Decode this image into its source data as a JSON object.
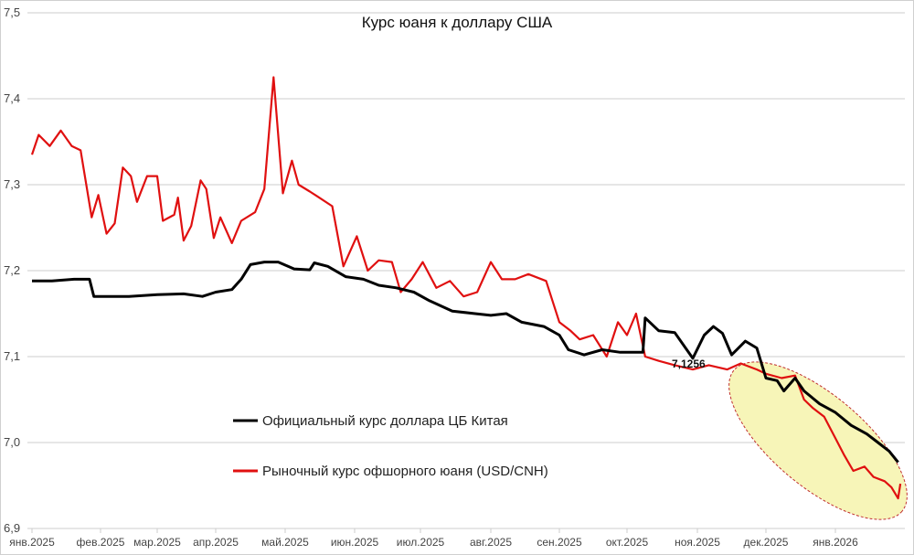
{
  "chart_data": {
    "type": "line",
    "title": "Курс юаня к доллару США",
    "ylim": [
      6.9,
      7.5
    ],
    "yticks": [
      "6,9",
      "7,0",
      "7,1",
      "7,2",
      "7,3",
      "7,4",
      "7,5"
    ],
    "ytick_values": [
      6.9,
      7.0,
      7.1,
      7.2,
      7.3,
      7.4,
      7.5
    ],
    "xticks": [
      "янв.2025",
      "фев.2025",
      "мар.2025",
      "апр.2025",
      "май.2025",
      "июн.2025",
      "июл.2025",
      "авг.2025",
      "сен.2025",
      "окт.2025",
      "ноя.2025",
      "дек.2025",
      "янв.2026"
    ],
    "xtick_dates": [
      "2025-01-01",
      "2025-02-01",
      "2025-03-01",
      "2025-04-01",
      "2025-05-01",
      "2025-06-01",
      "2025-07-01",
      "2025-08-01",
      "2025-09-01",
      "2025-10-01",
      "2025-11-01",
      "2025-12-01",
      "2026-01-01"
    ],
    "grid": true,
    "legend_placement": "center-left",
    "annotation": "7,1256",
    "highlight": "ellipse around Dec 2025 – Jan 2026 decline",
    "colors": {
      "official": "#000000",
      "offshore": "#e01010",
      "highlight_fill": "#f7f5b8",
      "highlight_stroke": "#c03030"
    },
    "series": [
      {
        "name": "Официальный курс доллара ЦБ Китая",
        "color": "#000000",
        "points": [
          [
            "2025-01-01",
            7.188
          ],
          [
            "2025-01-10",
            7.188
          ],
          [
            "2025-01-20",
            7.19
          ],
          [
            "2025-01-27",
            7.19
          ],
          [
            "2025-01-29",
            7.17
          ],
          [
            "2025-02-15",
            7.17
          ],
          [
            "2025-03-01",
            7.172
          ],
          [
            "2025-03-15",
            7.173
          ],
          [
            "2025-03-25",
            7.17
          ],
          [
            "2025-04-01",
            7.175
          ],
          [
            "2025-04-08",
            7.178
          ],
          [
            "2025-04-12",
            7.19
          ],
          [
            "2025-04-16",
            7.207
          ],
          [
            "2025-04-22",
            7.21
          ],
          [
            "2025-04-28",
            7.21
          ],
          [
            "2025-05-05",
            7.202
          ],
          [
            "2025-05-12",
            7.201
          ],
          [
            "2025-05-14",
            7.209
          ],
          [
            "2025-05-20",
            7.205
          ],
          [
            "2025-05-28",
            7.193
          ],
          [
            "2025-06-05",
            7.19
          ],
          [
            "2025-06-12",
            7.183
          ],
          [
            "2025-06-20",
            7.18
          ],
          [
            "2025-06-28",
            7.175
          ],
          [
            "2025-07-05",
            7.165
          ],
          [
            "2025-07-15",
            7.153
          ],
          [
            "2025-07-25",
            7.15
          ],
          [
            "2025-08-01",
            7.148
          ],
          [
            "2025-08-08",
            7.15
          ],
          [
            "2025-08-15",
            7.14
          ],
          [
            "2025-08-25",
            7.135
          ],
          [
            "2025-09-01",
            7.125
          ],
          [
            "2025-09-05",
            7.108
          ],
          [
            "2025-09-12",
            7.102
          ],
          [
            "2025-09-20",
            7.108
          ],
          [
            "2025-09-28",
            7.105
          ],
          [
            "2025-10-08",
            7.105
          ],
          [
            "2025-10-09",
            7.145
          ],
          [
            "2025-10-15",
            7.13
          ],
          [
            "2025-10-22",
            7.128
          ],
          [
            "2025-10-30",
            7.098
          ],
          [
            "2025-11-04",
            7.125
          ],
          [
            "2025-11-08",
            7.135
          ],
          [
            "2025-11-12",
            7.127
          ],
          [
            "2025-11-16",
            7.102
          ],
          [
            "2025-11-22",
            7.118
          ],
          [
            "2025-11-27",
            7.11
          ],
          [
            "2025-12-01",
            7.075
          ],
          [
            "2025-12-06",
            7.072
          ],
          [
            "2025-12-09",
            7.06
          ],
          [
            "2025-12-14",
            7.075
          ],
          [
            "2025-12-18",
            7.06
          ],
          [
            "2025-12-25",
            7.045
          ],
          [
            "2026-01-01",
            7.035
          ],
          [
            "2026-01-08",
            7.02
          ],
          [
            "2026-01-15",
            7.01
          ],
          [
            "2026-01-20",
            7.0
          ],
          [
            "2026-01-25",
            6.99
          ],
          [
            "2026-01-29",
            6.977
          ]
        ]
      },
      {
        "name": "Рыночный курс офшорного юаня (USD/CNH)",
        "color": "#e01010",
        "points": [
          [
            "2025-01-01",
            7.335
          ],
          [
            "2025-01-04",
            7.358
          ],
          [
            "2025-01-09",
            7.345
          ],
          [
            "2025-01-14",
            7.363
          ],
          [
            "2025-01-19",
            7.345
          ],
          [
            "2025-01-23",
            7.34
          ],
          [
            "2025-01-28",
            7.262
          ],
          [
            "2025-01-31",
            7.288
          ],
          [
            "2025-02-04",
            7.243
          ],
          [
            "2025-02-08",
            7.255
          ],
          [
            "2025-02-12",
            7.32
          ],
          [
            "2025-02-16",
            7.31
          ],
          [
            "2025-02-19",
            7.28
          ],
          [
            "2025-02-24",
            7.31
          ],
          [
            "2025-03-01",
            7.31
          ],
          [
            "2025-03-04",
            7.258
          ],
          [
            "2025-03-10",
            7.265
          ],
          [
            "2025-03-12",
            7.285
          ],
          [
            "2025-03-15",
            7.235
          ],
          [
            "2025-03-19",
            7.252
          ],
          [
            "2025-03-24",
            7.305
          ],
          [
            "2025-03-27",
            7.295
          ],
          [
            "2025-03-31",
            7.238
          ],
          [
            "2025-04-03",
            7.262
          ],
          [
            "2025-04-08",
            7.232
          ],
          [
            "2025-04-12",
            7.258
          ],
          [
            "2025-04-18",
            7.268
          ],
          [
            "2025-04-22",
            7.295
          ],
          [
            "2025-04-26",
            7.425
          ],
          [
            "2025-04-30",
            7.29
          ],
          [
            "2025-05-04",
            7.328
          ],
          [
            "2025-05-07",
            7.3
          ],
          [
            "2025-05-12",
            7.292
          ],
          [
            "2025-05-15",
            7.287
          ],
          [
            "2025-05-22",
            7.275
          ],
          [
            "2025-05-27",
            7.205
          ],
          [
            "2025-06-02",
            7.24
          ],
          [
            "2025-06-07",
            7.2
          ],
          [
            "2025-06-12",
            7.212
          ],
          [
            "2025-06-18",
            7.21
          ],
          [
            "2025-06-22",
            7.175
          ],
          [
            "2025-06-27",
            7.19
          ],
          [
            "2025-07-02",
            7.21
          ],
          [
            "2025-07-08",
            7.18
          ],
          [
            "2025-07-14",
            7.188
          ],
          [
            "2025-07-20",
            7.17
          ],
          [
            "2025-07-26",
            7.175
          ],
          [
            "2025-08-01",
            7.21
          ],
          [
            "2025-08-06",
            7.19
          ],
          [
            "2025-08-12",
            7.19
          ],
          [
            "2025-08-18",
            7.196
          ],
          [
            "2025-08-26",
            7.188
          ],
          [
            "2025-09-01",
            7.14
          ],
          [
            "2025-09-06",
            7.13
          ],
          [
            "2025-09-10",
            7.12
          ],
          [
            "2025-09-16",
            7.125
          ],
          [
            "2025-09-22",
            7.1
          ],
          [
            "2025-09-27",
            7.14
          ],
          [
            "2025-10-01",
            7.125
          ],
          [
            "2025-10-05",
            7.15
          ],
          [
            "2025-10-09",
            7.1
          ],
          [
            "2025-10-15",
            7.095
          ],
          [
            "2025-10-22",
            7.09
          ],
          [
            "2025-10-30",
            7.085
          ],
          [
            "2025-11-06",
            7.09
          ],
          [
            "2025-11-14",
            7.085
          ],
          [
            "2025-11-20",
            7.092
          ],
          [
            "2025-11-27",
            7.085
          ],
          [
            "2025-12-01",
            7.08
          ],
          [
            "2025-12-08",
            7.075
          ],
          [
            "2025-12-14",
            7.078
          ],
          [
            "2025-12-18",
            7.05
          ],
          [
            "2025-12-22",
            7.04
          ],
          [
            "2025-12-27",
            7.03
          ],
          [
            "2026-01-01",
            7.005
          ],
          [
            "2026-01-05",
            6.985
          ],
          [
            "2026-01-09",
            6.967
          ],
          [
            "2026-01-14",
            6.972
          ],
          [
            "2026-01-18",
            6.96
          ],
          [
            "2026-01-23",
            6.955
          ],
          [
            "2026-01-26",
            6.948
          ],
          [
            "2026-01-29",
            6.935
          ],
          [
            "2026-01-30",
            6.952
          ]
        ]
      }
    ]
  }
}
